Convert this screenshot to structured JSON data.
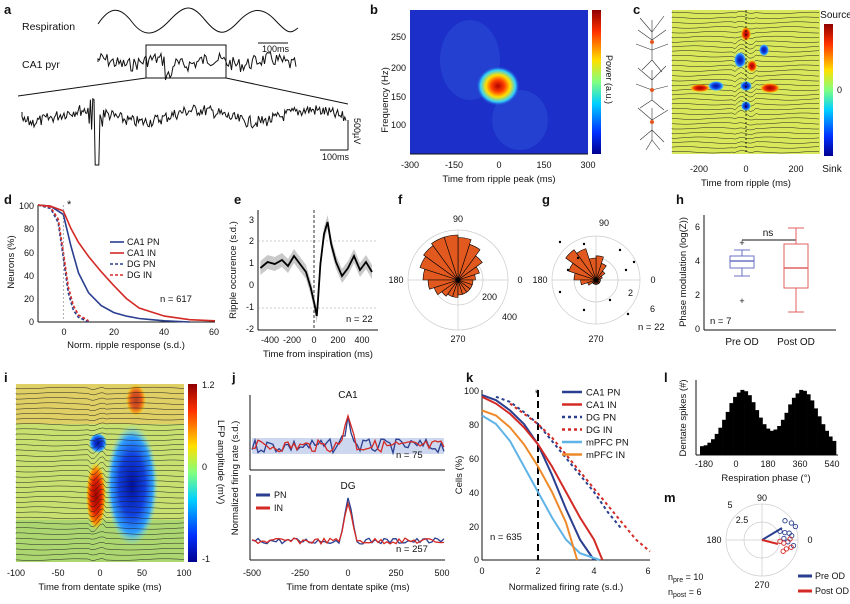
{
  "panels": {
    "a": {
      "label": "a",
      "resp": "Respiration",
      "ca1": "CA1 pyr",
      "bar1": "100ms",
      "bar2": "100ms",
      "bar_v": "500µV"
    },
    "b": {
      "label": "b",
      "ylabel": "Frequency (Hz)",
      "xlabel": "Time from ripple peak (ms)",
      "cbar": "Power (a.u.)",
      "xticks": [
        "-300",
        "-150",
        "0",
        "150",
        "300"
      ],
      "yticks": [
        "250",
        "200",
        "150",
        "100"
      ]
    },
    "c": {
      "label": "c",
      "source": "Source",
      "sink": "Sink",
      "zero": "0",
      "xlabel": "Time from ripple (ms)",
      "xticks": [
        "-200",
        "0",
        "200"
      ]
    },
    "d": {
      "label": "d",
      "ylabel": "Neurons (%)",
      "xlabel": "Norm. ripple response (s.d.)",
      "xticks": [
        "0",
        "20",
        "40",
        "60"
      ],
      "yticks": [
        "100",
        "80",
        "60",
        "40",
        "20",
        "0"
      ],
      "n": "n = 617",
      "star": "*",
      "legend": [
        "CA1 PN",
        "CA1 IN",
        "DG PN",
        "DG IN"
      ]
    },
    "e": {
      "label": "e",
      "ylabel": "Ripple occurence (s.d.)",
      "xlabel": "Time from inspiration (ms)",
      "xticks": [
        "-400",
        "-200",
        "0",
        "200",
        "400"
      ],
      "yticks": [
        "3",
        "2",
        "1",
        "0",
        "-1",
        "-2"
      ],
      "n": "n = 22"
    },
    "f": {
      "label": "f",
      "ticks": [
        "90",
        "180",
        "0",
        "200",
        "400",
        "270"
      ]
    },
    "g": {
      "label": "g",
      "ticks": [
        "90",
        "180",
        "0",
        "2",
        "6",
        "270"
      ],
      "n": "n = 22"
    },
    "h": {
      "label": "h",
      "ylabel": "Phase modulation (log(Z))",
      "ns": "ns",
      "n": "n = 7",
      "yticks": [
        "6",
        "4",
        "2",
        "0"
      ],
      "xcats": [
        "Pre OD",
        "Post OD"
      ]
    },
    "i": {
      "label": "i",
      "xlabel": "Time from dentate spike (ms)",
      "cbar": "LFP amplitude (mV)",
      "xticks": [
        "-100",
        "-50",
        "0",
        "50",
        "100"
      ],
      "cticks": [
        "1.2",
        "0",
        "-1"
      ]
    },
    "j": {
      "label": "j",
      "ylabel": "Normalized firing rate (s.d.)",
      "xlabel": "Time from dentate spike (ms)",
      "top": "CA1",
      "bottom": "DG",
      "n1": "n = 75",
      "n2": "n = 257",
      "xticks": [
        "-500",
        "-250",
        "0",
        "250",
        "500"
      ],
      "legend": [
        "PN",
        "IN"
      ]
    },
    "k": {
      "label": "k",
      "ylabel": "Cells (%)",
      "xlabel": "Normalized firing rate (s.d.)",
      "xticks": [
        "0",
        "2",
        "4",
        "6"
      ],
      "yticks": [
        "100",
        "80",
        "60",
        "40",
        "20",
        "0"
      ],
      "n": "n = 635",
      "star": "*",
      "legend": [
        "CA1 PN",
        "CA1 IN",
        "DG PN",
        "DG IN",
        "mPFC PN",
        "mPFC IN"
      ]
    },
    "l": {
      "label": "l",
      "ylabel": "Dentate spikes (#)",
      "xlabel": "Respiration phase (°)",
      "xticks": [
        "-180",
        "0",
        "180",
        "360",
        "540"
      ]
    },
    "m": {
      "label": "m",
      "ticks": [
        "90",
        "5",
        "2.5",
        "180",
        "0",
        "270"
      ],
      "npre": "n",
      "npre_sub": "pre",
      "npre_val": " = 10",
      "npost": "n",
      "npost_sub": "post",
      "npost_val": " = 6",
      "legend": [
        "Pre OD",
        "Post OD"
      ]
    }
  },
  "colors": {
    "ca1_pn": "#2a3f8f",
    "ca1_in": "#d42a26",
    "mpfc_pn": "#5fb3e6",
    "mpfc_in": "#ee8a2a",
    "orange": "#e2591f",
    "bar": "#000000"
  },
  "chart_data": [
    {
      "type": "line",
      "panel": "d",
      "x_label": "Norm. ripple response (s.d.)",
      "y_label": "Neurons (%)",
      "xlim": [
        -10,
        60
      ],
      "ylim": [
        0,
        100
      ],
      "series": [
        {
          "name": "CA1 PN",
          "x": [
            -10,
            -5,
            0,
            3,
            6,
            10,
            15,
            20,
            25,
            30,
            35,
            40,
            50
          ],
          "y": [
            100,
            99,
            92,
            65,
            42,
            25,
            14,
            8,
            5,
            3,
            2,
            1,
            0
          ]
        },
        {
          "name": "CA1 IN",
          "x": [
            -10,
            -5,
            0,
            3,
            6,
            10,
            15,
            20,
            25,
            30,
            40,
            50,
            60
          ],
          "y": [
            100,
            99,
            95,
            80,
            68,
            56,
            43,
            31,
            20,
            12,
            5,
            2,
            1
          ]
        },
        {
          "name": "DG PN",
          "x": [
            -10,
            -5,
            -2,
            0,
            2,
            4,
            6,
            10
          ],
          "y": [
            100,
            97,
            85,
            55,
            25,
            10,
            4,
            0
          ]
        },
        {
          "name": "DG IN",
          "x": [
            -10,
            -5,
            -2,
            0,
            2,
            4,
            6,
            10
          ],
          "y": [
            100,
            98,
            88,
            60,
            30,
            14,
            6,
            1
          ]
        }
      ]
    },
    {
      "type": "line",
      "panel": "e",
      "x_label": "Time from inspiration (ms)",
      "y_label": "Ripple occurence (s.d.)",
      "xlim": [
        -500,
        500
      ],
      "ylim": [
        -2.5,
        3.5
      ],
      "series": [
        {
          "name": "",
          "x": [
            -480,
            -420,
            -360,
            -300,
            -250,
            -200,
            -150,
            -100,
            -60,
            -30,
            -10,
            0,
            20,
            50,
            80,
            110,
            150,
            200,
            250,
            300,
            350,
            400,
            450
          ],
          "y": [
            0.6,
            0.9,
            0.8,
            1.0,
            0.7,
            1.2,
            0.8,
            0.4,
            -0.4,
            -1.2,
            -1.8,
            -1.0,
            0.8,
            2.3,
            2.9,
            1.8,
            0.9,
            0.2,
            0.6,
            1.2,
            0.5,
            0.9,
            0.4
          ]
        }
      ]
    },
    {
      "type": "bar",
      "panel": "l",
      "x_label": "Respiration phase (°)",
      "y_label": "Dentate spikes (#)",
      "xlim": [
        -180,
        540
      ],
      "values": [
        20,
        22,
        28,
        36,
        48,
        62,
        80,
        98,
        118,
        132,
        142,
        148,
        145,
        136,
        120,
        102,
        85,
        70,
        60,
        55,
        58,
        66,
        80,
        96,
        115,
        130,
        140,
        148,
        146,
        138,
        124,
        106,
        88,
        70,
        55,
        42,
        32
      ]
    },
    {
      "type": "line",
      "panel": "k",
      "x_label": "Normalized firing rate (s.d.)",
      "y_label": "Cells (%)",
      "xlim": [
        0,
        6
      ],
      "ylim": [
        0,
        100
      ],
      "series": [
        {
          "name": "CA1 PN",
          "x": [
            0,
            0.5,
            1,
            1.5,
            2,
            2.5,
            3,
            3.5,
            4
          ],
          "y": [
            97,
            94,
            88,
            80,
            68,
            50,
            30,
            12,
            0
          ]
        },
        {
          "name": "CA1 IN",
          "x": [
            0,
            0.5,
            1,
            1.5,
            2,
            2.5,
            3,
            3.5,
            4,
            4.3
          ],
          "y": [
            96,
            92,
            86,
            78,
            68,
            55,
            40,
            25,
            12,
            0
          ]
        },
        {
          "name": "DG PN",
          "x": [
            0.5,
            1,
            1.5,
            2,
            2.5,
            3,
            3.5,
            4,
            4.5,
            5
          ],
          "y": [
            96,
            93,
            87,
            80,
            70,
            60,
            50,
            40,
            28,
            18
          ]
        },
        {
          "name": "DG IN",
          "x": [
            1,
            1.5,
            2,
            2.5,
            3,
            3.5,
            4,
            4.5,
            5,
            5.5,
            6
          ],
          "y": [
            92,
            86,
            80,
            72,
            62,
            52,
            42,
            32,
            22,
            12,
            5
          ]
        },
        {
          "name": "mPFC PN",
          "x": [
            0,
            0.5,
            1,
            1.5,
            2,
            2.5,
            3,
            3.5,
            4.2
          ],
          "y": [
            85,
            80,
            70,
            55,
            40,
            25,
            12,
            4,
            0
          ]
        },
        {
          "name": "mPFC IN",
          "x": [
            0,
            0.5,
            1,
            1.5,
            2,
            2.5,
            3,
            3.4
          ],
          "y": [
            88,
            85,
            78,
            68,
            55,
            40,
            22,
            0
          ]
        }
      ]
    }
  ]
}
